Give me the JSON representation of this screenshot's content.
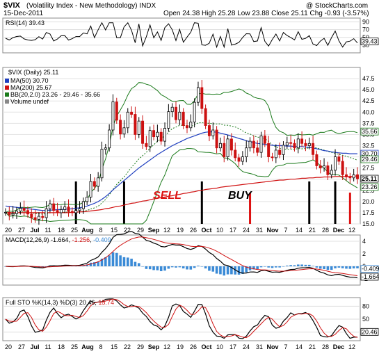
{
  "header": {
    "symbol": "$VIX",
    "name": "(Volatility Index - New Methodology) INDX",
    "date": "15-Dec-2011",
    "ohlc": "Open 24.38  High 25.28  Low 23.88  Close 25.11  Chg -0.93 (-3.57%)",
    "watermark": "@ StockCharts.com"
  },
  "panels": {
    "rsi_label": "RSI(14) 39.43",
    "price_label": "$VIX (Daily) 25.11",
    "ma50_label": "MA(50) 30.70",
    "ma200_label": "MA(200) 25.67",
    "bb_label": "BB(20,2.0) 23.26 - 29.46 - 35.66",
    "volume_label": "Volume undef",
    "macd_label_prefix": "MACD(12,26,9)",
    "macd_val1": "-1.664",
    "macd_val2": "-1.256",
    "macd_val3": "-0.409",
    "sto_label_prefix": "Full STO %K(14,3) %D(3)",
    "sto_k": "20.46",
    "sto_d": "15.74"
  },
  "annotations": {
    "sell": "SELL",
    "buy": "BUY"
  },
  "colors": {
    "ma50": "#1f3fbf",
    "ma200": "#d01010",
    "bb": "#1a7a1a",
    "up": "#ffffff",
    "down": "#cc1111",
    "macd_hist": "#3a8ad6",
    "signal_red": "#d01010",
    "marker_black": "#000000",
    "marker_red": "#dd1111"
  },
  "chart_data": {
    "type": "candlestick",
    "x_labels": [
      "20",
      "27",
      "Jul",
      "11",
      "18",
      "25",
      "Aug",
      "8",
      "15",
      "22",
      "29",
      "Sep",
      "12",
      "19",
      "26",
      "Oct",
      "10",
      "17",
      "24",
      "31",
      "Nov",
      "7",
      "14",
      "21",
      "28",
      "Dec",
      "12"
    ],
    "price_ylim": [
      15.0,
      50.0
    ],
    "price_ticks": [
      "15.0",
      "17.5",
      "20.0",
      "22.5",
      "25.0",
      "27.5",
      "30.0",
      "32.5",
      "35.0",
      "37.5",
      "40.0",
      "42.5",
      "45.0",
      "47.5"
    ],
    "price_right_labels": [
      "35.66",
      "30.70",
      "29.46",
      "25.11",
      "23.26"
    ],
    "rsi_ticks": [
      "30",
      "50",
      "70",
      "90"
    ],
    "rsi_right": "39.43",
    "macd_ticks": [
      "-2",
      "0",
      "2",
      "4"
    ],
    "macd_right": [
      "-0.409",
      "-1.664"
    ],
    "sto_ticks": [
      "20",
      "50",
      "80"
    ],
    "sto_right": "20.46",
    "close": [
      17.6,
      17.0,
      17.3,
      17.9,
      18.5,
      18.0,
      17.2,
      16.4,
      16.0,
      16.7,
      16.4,
      18.4,
      19.5,
      18.0,
      17.5,
      18.2,
      18.8,
      17.8,
      17.5,
      18.0,
      18.4,
      20.0,
      21.0,
      24.5,
      23.4,
      25.3,
      31.7,
      32.0,
      36.0,
      42.3,
      38.2,
      35.1,
      36.5,
      40.0,
      39.5,
      35.0,
      38.0,
      33.0,
      32.3,
      35.9,
      34.5,
      35.5,
      33.5,
      36.4,
      40.1,
      41.1,
      38.3,
      40.0,
      37.0,
      36.5,
      37.8,
      42.2,
      45.5,
      40.8,
      37.0,
      34.7,
      36.0,
      32.0,
      33.0,
      30.0,
      34.0,
      31.5,
      29.8,
      29.0,
      30.0,
      32.0,
      33.5,
      32.0,
      31.0,
      34.7,
      33.0,
      30.0,
      29.8,
      31.5,
      30.5,
      32.6,
      33.2,
      33.0,
      32.0,
      34.0,
      33.0,
      32.5,
      33.0,
      30.5,
      28.0,
      27.5,
      28.0,
      26.0,
      27.0,
      30.0,
      29.0,
      26.0,
      25.5,
      25.3,
      26.0,
      25.1
    ],
    "ma50": [
      19.0,
      18.9,
      18.8,
      18.7,
      18.6,
      18.5,
      18.4,
      18.3,
      18.2,
      18.1,
      18.0,
      18.0,
      18.1,
      18.1,
      18.2,
      18.2,
      18.3,
      18.3,
      18.4,
      18.5,
      18.6,
      18.8,
      19.0,
      19.3,
      19.6,
      20.0,
      20.5,
      21.1,
      21.8,
      22.6,
      23.3,
      24.0,
      24.7,
      25.4,
      26.1,
      26.8,
      27.5,
      28.1,
      28.7,
      29.3,
      29.9,
      30.5,
      31.0,
      31.5,
      32.0,
      32.5,
      32.9,
      33.3,
      33.7,
      34.1,
      34.4,
      34.7,
      35.0,
      35.3,
      35.5,
      35.6,
      35.6,
      35.5,
      35.3,
      35.1,
      34.9,
      34.6,
      34.4,
      34.1,
      33.9,
      33.6,
      33.4,
      33.2,
      33.0,
      32.9,
      32.8,
      32.7,
      32.6,
      32.5,
      32.5,
      32.5,
      32.4,
      32.4,
      32.3,
      32.3,
      32.3,
      32.2,
      32.1,
      32.0,
      31.8,
      31.6,
      31.4,
      31.3,
      31.1,
      31.0,
      30.9,
      30.8,
      30.8,
      30.7,
      30.7,
      30.7
    ],
    "ma200": [
      17.5,
      17.5,
      17.5,
      17.5,
      17.5,
      17.5,
      17.5,
      17.5,
      17.5,
      17.5,
      17.5,
      17.5,
      17.5,
      17.5,
      17.5,
      17.5,
      17.5,
      17.5,
      17.6,
      17.6,
      17.7,
      17.7,
      17.8,
      17.9,
      18.0,
      18.1,
      18.2,
      18.4,
      18.5,
      18.7,
      18.9,
      19.0,
      19.2,
      19.4,
      19.6,
      19.7,
      19.9,
      20.1,
      20.2,
      20.4,
      20.6,
      20.7,
      20.9,
      21.0,
      21.2,
      21.3,
      21.5,
      21.6,
      21.8,
      21.9,
      22.1,
      22.2,
      22.4,
      22.5,
      22.7,
      22.8,
      22.9,
      23.0,
      23.2,
      23.3,
      23.4,
      23.5,
      23.6,
      23.7,
      23.8,
      23.9,
      24.0,
      24.1,
      24.2,
      24.3,
      24.4,
      24.5,
      24.6,
      24.7,
      24.8,
      24.8,
      24.9,
      25.0,
      25.0,
      25.1,
      25.2,
      25.2,
      25.3,
      25.3,
      25.4,
      25.4,
      25.5,
      25.5,
      25.5,
      25.6,
      25.6,
      25.6,
      25.6,
      25.6,
      25.7,
      25.7
    ]
  }
}
